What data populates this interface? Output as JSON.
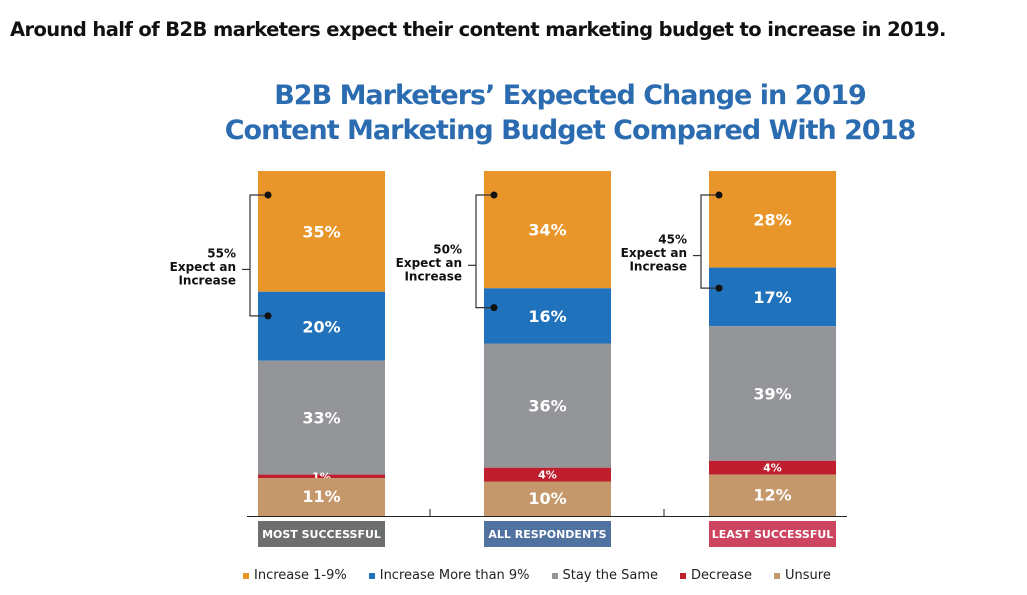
{
  "headline": "Around half of B2B marketers expect their content marketing budget to increase in 2019.",
  "chart_data": {
    "type": "bar",
    "stacked": true,
    "title_lines": [
      "B2B Marketers’ Expected Change in 2019",
      "Content Marketing Budget Compared With 2018"
    ],
    "xlabel": "",
    "ylabel": "",
    "ylim": [
      0,
      100
    ],
    "grid": false,
    "legend_position": "bottom",
    "categories": [
      "MOST SUCCESSFUL",
      "ALL RESPONDENTS",
      "LEAST SUCCESSFUL"
    ],
    "category_colors": [
      "#6d6e70",
      "#4f72a1",
      "#cc4460"
    ],
    "series": [
      {
        "name": "Increase 1-9%",
        "color": "#e8952a",
        "values": [
          35,
          34,
          28
        ]
      },
      {
        "name": "Increase More than 9%",
        "color": "#1f72bb",
        "values": [
          20,
          16,
          17
        ]
      },
      {
        "name": "Stay the Same",
        "color": "#939598",
        "values": [
          33,
          36,
          39
        ]
      },
      {
        "name": "Decrease",
        "color": "#be1e2d",
        "values": [
          1,
          4,
          4
        ]
      },
      {
        "name": "Unsure",
        "color": "#c4986a",
        "values": [
          11,
          10,
          12
        ]
      }
    ],
    "annotations": [
      {
        "value": "55%",
        "line1": "Expect an",
        "line2": "Increase"
      },
      {
        "value": "50%",
        "line1": "Expect an",
        "line2": "Increase"
      },
      {
        "value": "45%",
        "line1": "Expect an",
        "line2": "Increase"
      }
    ]
  }
}
